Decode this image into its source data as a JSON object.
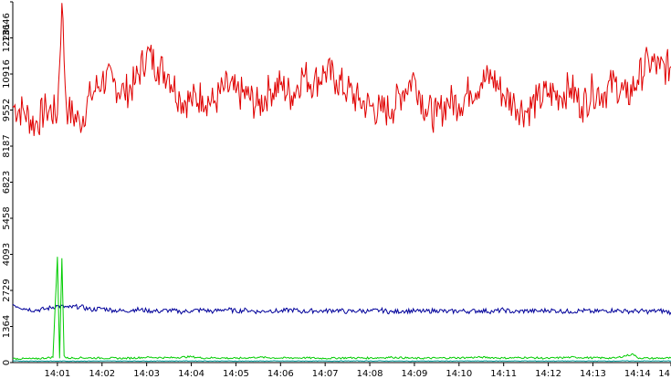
{
  "chart_data": {
    "type": "line",
    "title": "",
    "xlabel": "",
    "ylabel": "",
    "ylim": [
      0,
      13646
    ],
    "y_ticks": [
      0,
      1364,
      2729,
      4093,
      5458,
      6823,
      8187,
      9552,
      10916,
      12281,
      13646
    ],
    "x_tick_labels": [
      "14:01",
      "14:02",
      "14:03",
      "14:04",
      "14:05",
      "14:06",
      "14:07",
      "14:08",
      "14:09",
      "14:10",
      "14:11",
      "14:12",
      "14:13",
      "14:14",
      "14"
    ],
    "x_range_minutes": [
      0.0,
      14.75
    ],
    "x_tick_minutes": [
      1,
      2,
      3,
      4,
      5,
      6,
      7,
      8,
      9,
      10,
      11,
      12,
      13,
      14,
      14.75
    ],
    "grid": false,
    "legend": "none",
    "series": [
      {
        "color": "#e00000",
        "x": [
          0.0,
          0.25,
          0.5,
          0.75,
          1.0,
          1.1,
          1.2,
          1.25,
          1.5,
          1.75,
          2.0,
          2.25,
          2.5,
          2.75,
          3.0,
          3.25,
          3.5,
          3.75,
          4.0,
          4.25,
          4.5,
          4.75,
          5.0,
          5.25,
          5.5,
          5.75,
          6.0,
          6.25,
          6.5,
          6.75,
          7.0,
          7.25,
          7.5,
          7.75,
          8.0,
          8.25,
          8.5,
          8.75,
          9.0,
          9.25,
          9.5,
          9.75,
          10.0,
          10.25,
          10.5,
          10.75,
          11.0,
          11.25,
          11.5,
          11.75,
          12.0,
          12.25,
          12.5,
          12.75,
          13.0,
          13.25,
          13.5,
          13.75,
          14.0,
          14.25,
          14.5,
          14.75
        ],
        "values": [
          9700,
          9500,
          9000,
          9600,
          9400,
          13600,
          9700,
          9500,
          9100,
          10100,
          10700,
          10600,
          10200,
          10600,
          11700,
          11200,
          10900,
          10000,
          9900,
          10100,
          9800,
          10400,
          10200,
          10100,
          9700,
          10300,
          10500,
          10100,
          10900,
          10600,
          11000,
          10700,
          10300,
          9900,
          9700,
          9500,
          9600,
          10300,
          10800,
          9600,
          9300,
          9900,
          9800,
          10300,
          10600,
          10800,
          10100,
          9800,
          9500,
          9900,
          10200,
          10100,
          10400,
          9700,
          10300,
          10200,
          10600,
          10000,
          10700,
          11400,
          11100,
          11200
        ]
      },
      {
        "color": "#00009a",
        "x": [
          0.0,
          0.25,
          0.5,
          0.75,
          1.0,
          1.25,
          1.5,
          1.75,
          2.0,
          2.25,
          2.5,
          2.75,
          3.0,
          3.25,
          3.5,
          3.75,
          4.0,
          4.25,
          4.5,
          4.75,
          5.0,
          5.25,
          5.5,
          5.75,
          6.0,
          6.25,
          6.5,
          6.75,
          7.0,
          7.25,
          7.5,
          7.75,
          8.0,
          8.25,
          8.5,
          8.75,
          9.0,
          9.25,
          9.5,
          9.75,
          10.0,
          10.25,
          10.5,
          10.75,
          11.0,
          11.25,
          11.5,
          11.75,
          12.0,
          12.25,
          12.5,
          12.75,
          13.0,
          13.25,
          13.5,
          13.75,
          14.0,
          14.25,
          14.5,
          14.75
        ],
        "values": [
          2200,
          2050,
          1980,
          2030,
          2150,
          2080,
          2120,
          2000,
          2050,
          1980,
          1950,
          2010,
          1970,
          1940,
          1980,
          1920,
          1960,
          1990,
          1930,
          2020,
          1950,
          1990,
          1920,
          1970,
          1940,
          2000,
          1930,
          1960,
          1950,
          1990,
          1920,
          1960,
          1940,
          1980,
          1910,
          1960,
          1950,
          1930,
          1980,
          1920,
          1960,
          1940,
          1970,
          1930,
          1990,
          1910,
          1960,
          1940,
          1980,
          1950,
          1930,
          1970,
          1920,
          1960,
          1980,
          1940,
          1950,
          1930,
          1960,
          1900
        ]
      },
      {
        "color": "#00cc00",
        "x": [
          0.0,
          0.5,
          0.9,
          1.0,
          1.05,
          1.1,
          1.15,
          1.2,
          1.5,
          2.0,
          2.5,
          3.0,
          3.5,
          4.0,
          4.25,
          4.5,
          5.0,
          5.5,
          6.0,
          6.5,
          7.0,
          7.5,
          8.0,
          8.5,
          9.0,
          9.5,
          10.0,
          10.5,
          11.0,
          11.5,
          12.0,
          12.5,
          13.0,
          13.5,
          13.9,
          14.0,
          14.25,
          14.75
        ],
        "values": [
          150,
          140,
          200,
          4000,
          160,
          3950,
          260,
          170,
          180,
          170,
          160,
          200,
          180,
          220,
          170,
          180,
          160,
          200,
          170,
          180,
          160,
          180,
          170,
          200,
          160,
          170,
          180,
          200,
          170,
          190,
          160,
          200,
          180,
          170,
          320,
          180,
          160,
          170
        ]
      },
      {
        "color": "#009c9c",
        "x": [
          0.0,
          1.0,
          2.0,
          3.0,
          4.0,
          5.0,
          6.0,
          7.0,
          8.0,
          9.0,
          10.0,
          11.0,
          12.0,
          13.0,
          14.0,
          14.75
        ],
        "values": [
          60,
          55,
          60,
          58,
          62,
          57,
          60,
          58,
          61,
          57,
          60,
          59,
          60,
          58,
          61,
          60
        ]
      }
    ]
  }
}
